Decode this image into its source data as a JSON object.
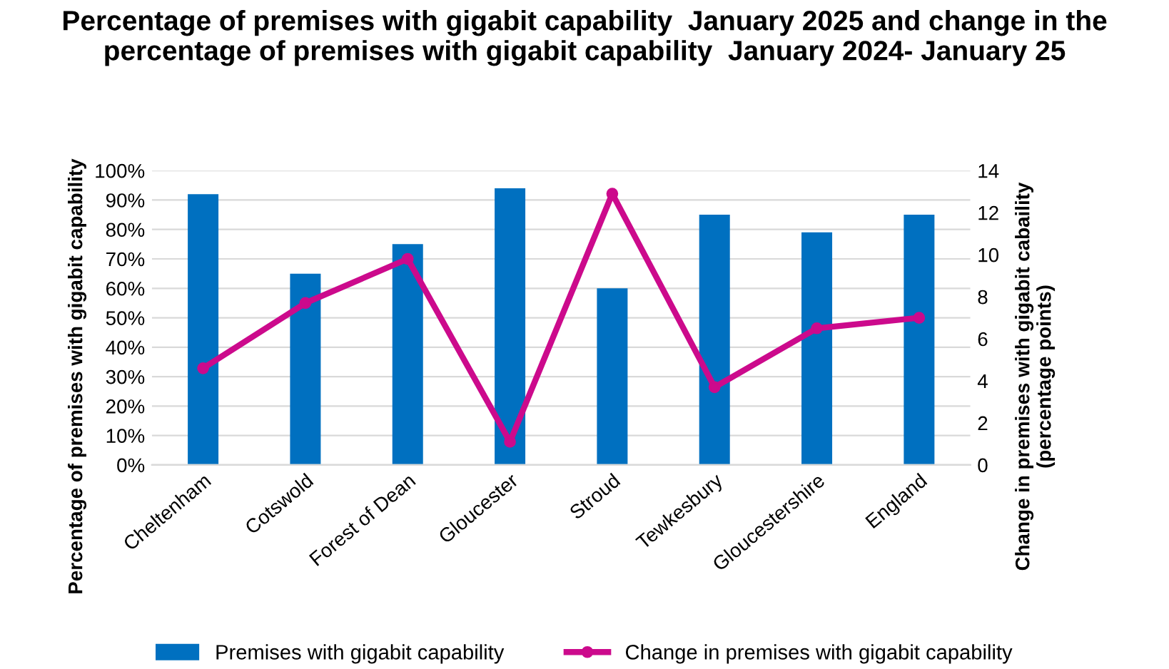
{
  "chart_data": {
    "type": "bar",
    "title": "Percentage of premises with gigabit capability  January 2025 and change in the percentage of premises with gigabit capability  January 2024- January 25",
    "categories": [
      "Cheltenham",
      "Cotswold",
      "Forest of Dean",
      "Gloucester",
      "Stroud",
      "Tewkesbury",
      "Gloucestershire",
      "England"
    ],
    "series": [
      {
        "name": "Premises with gigabit capability",
        "color": "#0070c0",
        "values": [
          92,
          65,
          75,
          94,
          60,
          85,
          79,
          85
        ]
      },
      {
        "name": "Change in premises with gigabit capability",
        "type": "line",
        "axis": "y2",
        "color": "#cc0a8c",
        "marker": "circle",
        "values": [
          4.6,
          7.7,
          9.8,
          1.1,
          12.9,
          3.7,
          6.5,
          7.0
        ]
      }
    ],
    "ylabel": "Percentage of premises with gigabit capability",
    "y2label": "Change in premises with gigabit cabaility\n(percentage points)",
    "ylim": [
      0,
      100
    ],
    "yticks": [
      {
        "value": 0,
        "label": "0%"
      },
      {
        "value": 10,
        "label": "10%"
      },
      {
        "value": 20,
        "label": "20%"
      },
      {
        "value": 30,
        "label": "30%"
      },
      {
        "value": 40,
        "label": "40%"
      },
      {
        "value": 50,
        "label": "50%"
      },
      {
        "value": 60,
        "label": "60%"
      },
      {
        "value": 70,
        "label": "70%"
      },
      {
        "value": 80,
        "label": "80%"
      },
      {
        "value": 90,
        "label": "90%"
      },
      {
        "value": 100,
        "label": "100%"
      }
    ],
    "y2lim": [
      0,
      14
    ],
    "y2ticks": [
      0,
      2,
      4,
      6,
      8,
      10,
      12,
      14
    ],
    "grid": "y",
    "legend": "bottom"
  }
}
